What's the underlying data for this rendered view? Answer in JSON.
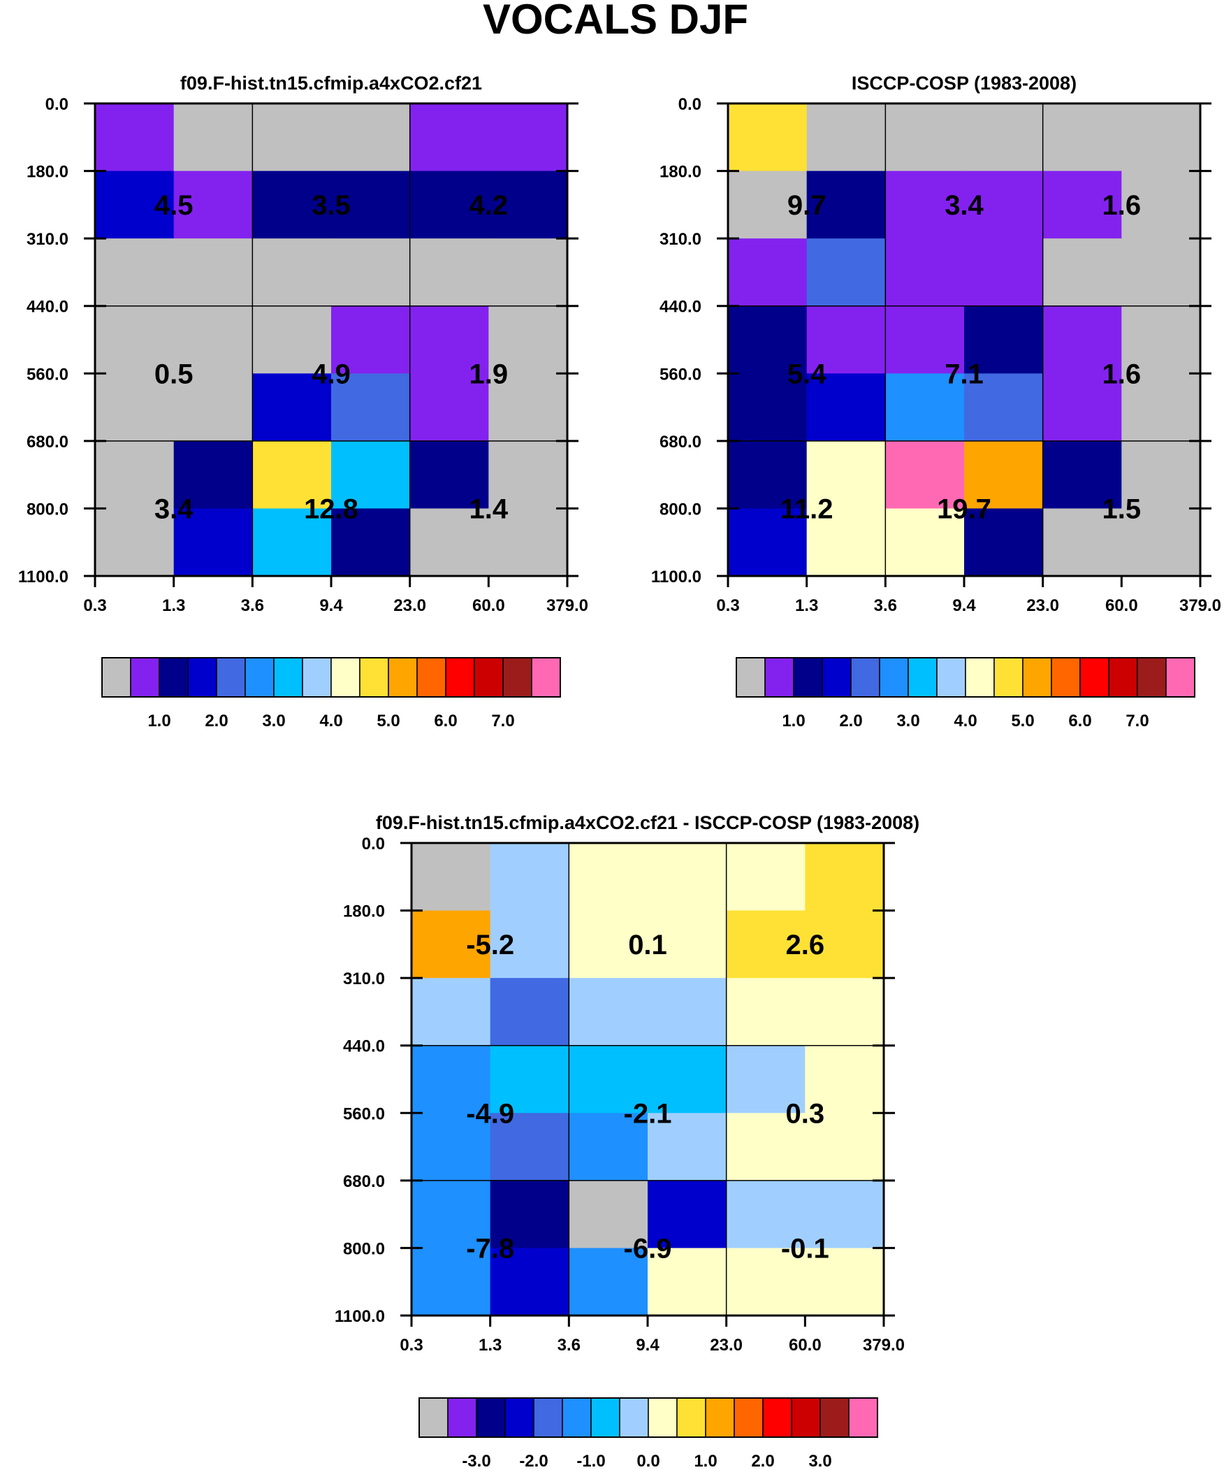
{
  "title": "VOCALS DJF",
  "colors": {
    "palette": [
      "#c0c0c0",
      "#8322ef",
      "#00008b",
      "#0000cd",
      "#4169e1",
      "#1e90ff",
      "#00bfff",
      "#a0cfff",
      "#ffffc8",
      "#ffe135",
      "#ffa500",
      "#ff6600",
      "#ff0000",
      "#cc0000",
      "#9c1c1c",
      "#ff69b4"
    ]
  },
  "chart_data": [
    {
      "type": "heatmap",
      "title": "f09.F-hist.tn15.cfmip.a4xCO2.cf21",
      "x_ticks": [
        "0.3",
        "1.3",
        "3.6",
        "9.4",
        "23.0",
        "60.0",
        "379.0"
      ],
      "y_ticks": [
        "0.0",
        "180.0",
        "310.0",
        "440.0",
        "560.0",
        "680.0",
        "800.0",
        "1100.0"
      ],
      "grid": true,
      "cell_color_index": [
        [
          1,
          0,
          0,
          0,
          1,
          1
        ],
        [
          3,
          1,
          2,
          2,
          2,
          2
        ],
        [
          0,
          0,
          0,
          0,
          0,
          0
        ],
        [
          0,
          0,
          0,
          1,
          1,
          0
        ],
        [
          0,
          0,
          3,
          4,
          1,
          0
        ],
        [
          0,
          2,
          9,
          6,
          2,
          0
        ],
        [
          0,
          3,
          6,
          2,
          0,
          0
        ]
      ],
      "block_values": [
        {
          "label": "4.5",
          "col_range": [
            0,
            2
          ],
          "row_range": [
            1,
            1
          ]
        },
        {
          "label": "3.5",
          "col_range": [
            2,
            4
          ],
          "row_range": [
            1,
            1
          ]
        },
        {
          "label": "4.2",
          "col_range": [
            4,
            6
          ],
          "row_range": [
            1,
            1
          ]
        },
        {
          "label": "0.5",
          "col_range": [
            0,
            2
          ],
          "row_range": [
            3,
            4
          ]
        },
        {
          "label": "4.9",
          "col_range": [
            2,
            4
          ],
          "row_range": [
            3,
            4
          ]
        },
        {
          "label": "1.9",
          "col_range": [
            4,
            6
          ],
          "row_range": [
            3,
            4
          ]
        },
        {
          "label": "3.4",
          "col_range": [
            0,
            2
          ],
          "row_range": [
            5,
            6
          ]
        },
        {
          "label": "12.8",
          "col_range": [
            2,
            4
          ],
          "row_range": [
            5,
            6
          ]
        },
        {
          "label": "1.4",
          "col_range": [
            4,
            6
          ],
          "row_range": [
            5,
            6
          ]
        }
      ],
      "colorbar": {
        "labels": [
          "1.0",
          "2.0",
          "3.0",
          "4.0",
          "5.0",
          "6.0",
          "7.0"
        ]
      }
    },
    {
      "type": "heatmap",
      "title": "ISCCP-COSP (1983-2008)",
      "x_ticks": [
        "0.3",
        "1.3",
        "3.6",
        "9.4",
        "23.0",
        "60.0",
        "379.0"
      ],
      "y_ticks": [
        "0.0",
        "180.0",
        "310.0",
        "440.0",
        "560.0",
        "680.0",
        "800.0",
        "1100.0"
      ],
      "grid": true,
      "cell_color_index": [
        [
          9,
          0,
          0,
          0,
          0,
          0
        ],
        [
          0,
          2,
          1,
          1,
          1,
          0
        ],
        [
          1,
          4,
          1,
          1,
          0,
          0
        ],
        [
          2,
          1,
          1,
          2,
          1,
          0
        ],
        [
          2,
          3,
          5,
          4,
          1,
          0
        ],
        [
          2,
          8,
          15,
          10,
          2,
          0
        ],
        [
          3,
          8,
          8,
          2,
          0,
          0
        ]
      ],
      "block_values": [
        {
          "label": "9.7",
          "col_range": [
            0,
            2
          ],
          "row_range": [
            1,
            1
          ]
        },
        {
          "label": "3.4",
          "col_range": [
            2,
            4
          ],
          "row_range": [
            1,
            1
          ]
        },
        {
          "label": "1.6",
          "col_range": [
            4,
            6
          ],
          "row_range": [
            1,
            1
          ]
        },
        {
          "label": "5.4",
          "col_range": [
            0,
            2
          ],
          "row_range": [
            3,
            4
          ]
        },
        {
          "label": "7.1",
          "col_range": [
            2,
            4
          ],
          "row_range": [
            3,
            4
          ]
        },
        {
          "label": "1.6",
          "col_range": [
            4,
            6
          ],
          "row_range": [
            3,
            4
          ]
        },
        {
          "label": "11.2",
          "col_range": [
            0,
            2
          ],
          "row_range": [
            5,
            6
          ]
        },
        {
          "label": "19.7",
          "col_range": [
            2,
            4
          ],
          "row_range": [
            5,
            6
          ]
        },
        {
          "label": "1.5",
          "col_range": [
            4,
            6
          ],
          "row_range": [
            5,
            6
          ]
        }
      ],
      "colorbar": {
        "labels": [
          "1.0",
          "2.0",
          "3.0",
          "4.0",
          "5.0",
          "6.0",
          "7.0"
        ]
      }
    },
    {
      "type": "heatmap",
      "title": "f09.F-hist.tn15.cfmip.a4xCO2.cf21 - ISCCP-COSP (1983-2008)",
      "x_ticks": [
        "0.3",
        "1.3",
        "3.6",
        "9.4",
        "23.0",
        "60.0",
        "379.0"
      ],
      "y_ticks": [
        "0.0",
        "180.0",
        "310.0",
        "440.0",
        "560.0",
        "680.0",
        "800.0",
        "1100.0"
      ],
      "grid": true,
      "cell_color_index": [
        [
          0,
          7,
          8,
          8,
          8,
          9
        ],
        [
          10,
          7,
          8,
          8,
          9,
          9
        ],
        [
          7,
          4,
          7,
          7,
          8,
          8
        ],
        [
          5,
          6,
          6,
          6,
          7,
          8
        ],
        [
          5,
          4,
          5,
          7,
          8,
          8
        ],
        [
          5,
          2,
          0,
          3,
          7,
          7
        ],
        [
          5,
          3,
          5,
          8,
          8,
          8
        ]
      ],
      "block_values": [
        {
          "label": "-5.2",
          "col_range": [
            0,
            2
          ],
          "row_range": [
            1,
            1
          ]
        },
        {
          "label": "0.1",
          "col_range": [
            2,
            4
          ],
          "row_range": [
            1,
            1
          ]
        },
        {
          "label": "2.6",
          "col_range": [
            4,
            6
          ],
          "row_range": [
            1,
            1
          ]
        },
        {
          "label": "-4.9",
          "col_range": [
            0,
            2
          ],
          "row_range": [
            3,
            4
          ]
        },
        {
          "label": "-2.1",
          "col_range": [
            2,
            4
          ],
          "row_range": [
            3,
            4
          ]
        },
        {
          "label": "0.3",
          "col_range": [
            4,
            6
          ],
          "row_range": [
            3,
            4
          ]
        },
        {
          "label": "-7.8",
          "col_range": [
            0,
            2
          ],
          "row_range": [
            5,
            6
          ]
        },
        {
          "label": "-6.9",
          "col_range": [
            2,
            4
          ],
          "row_range": [
            5,
            6
          ]
        },
        {
          "label": "-0.1",
          "col_range": [
            4,
            6
          ],
          "row_range": [
            5,
            6
          ]
        }
      ],
      "colorbar": {
        "labels": [
          "-3.0",
          "-2.0",
          "-1.0",
          "0.0",
          "1.0",
          "2.0",
          "3.0"
        ]
      }
    }
  ]
}
